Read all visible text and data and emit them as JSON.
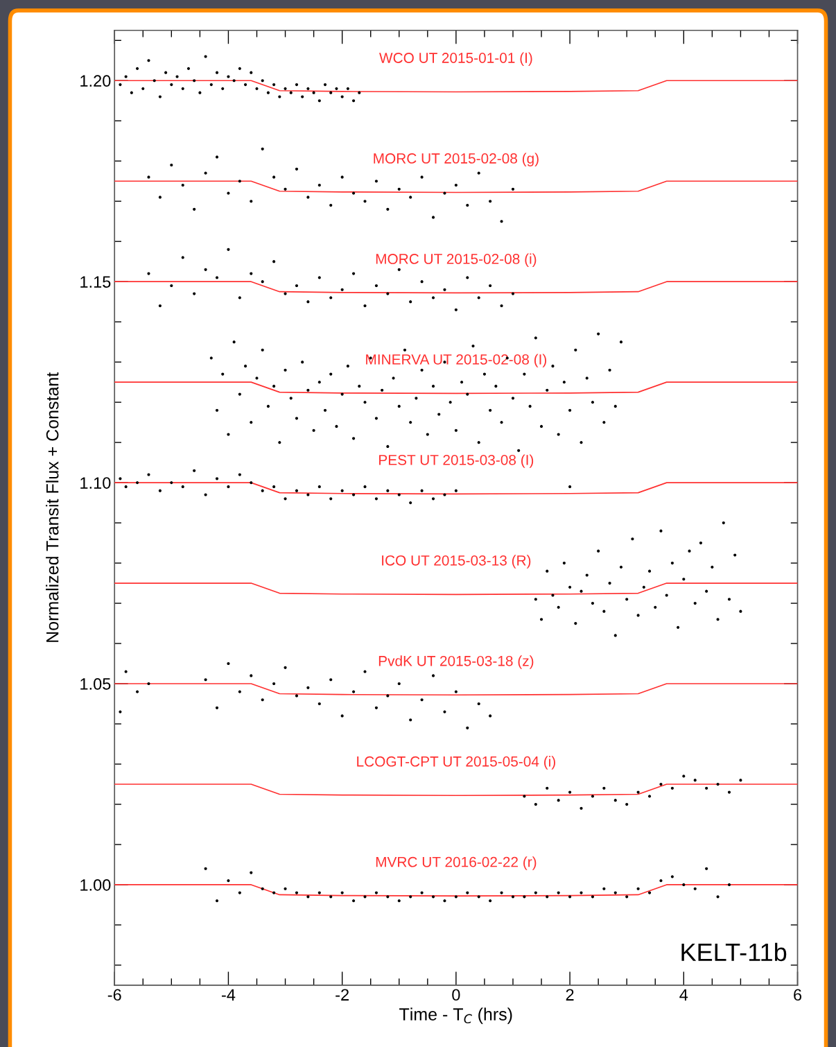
{
  "chart_data": {
    "type": "scatter",
    "xlabel": "Time - T$_{C}$ (hrs)",
    "ylabel": "Normalized Transit Flux + Constant",
    "xlim": [
      -6,
      6
    ],
    "xticks": [
      -6,
      -4,
      -2,
      0,
      2,
      4,
      6
    ],
    "ylim": [
      0.975,
      1.2125
    ],
    "yticks": [
      {
        "value": 1.0,
        "label": "1.00"
      },
      {
        "value": 1.05,
        "label": "1.05"
      },
      {
        "value": 1.1,
        "label": "1.10"
      },
      {
        "value": 1.15,
        "label": "1.15"
      },
      {
        "value": 1.2,
        "label": "1.20"
      }
    ],
    "grid": false,
    "legend": false,
    "series": [
      {
        "marker": "circle",
        "color": "#000000",
        "x": [
          -5.9,
          -5.8,
          -5.7,
          -5.6,
          -5.5,
          -5.4,
          -5.3,
          -5.2,
          -5.1,
          -5.0,
          -4.9,
          -4.8,
          -4.7,
          -4.6,
          -4.5,
          -4.4,
          -4.3,
          -4.2,
          -4.1,
          -4.0,
          -3.9,
          -3.8,
          -3.7,
          -3.6,
          -3.5,
          -3.4,
          -3.3,
          -3.2,
          -3.1,
          -3.0,
          -2.9,
          -2.8,
          -2.7,
          -2.6,
          -2.5,
          -2.4,
          -2.3,
          -2.2,
          -2.1,
          -2.0,
          -1.9,
          -1.8,
          -1.7
        ],
        "values": [
          1.199,
          1.201,
          1.197,
          1.203,
          1.198,
          1.205,
          1.2,
          1.196,
          1.202,
          1.199,
          1.201,
          1.198,
          1.203,
          1.2,
          1.197,
          1.206,
          1.199,
          1.202,
          1.198,
          1.201,
          1.2,
          1.203,
          1.199,
          1.202,
          1.198,
          1.2,
          1.197,
          1.199,
          1.196,
          1.198,
          1.197,
          1.199,
          1.196,
          1.198,
          1.197,
          1.195,
          1.199,
          1.197,
          1.198,
          1.196,
          1.198,
          1.195,
          1.197
        ]
      },
      {
        "marker": "circle",
        "color": "#000000",
        "x": [
          -5.4,
          -5.2,
          -5.0,
          -4.8,
          -4.6,
          -4.4,
          -4.2,
          -4.0,
          -3.8,
          -3.6,
          -3.4,
          -3.2,
          -3.0,
          -2.8,
          -2.6,
          -2.4,
          -2.2,
          -2.0,
          -1.8,
          -1.6,
          -1.4,
          -1.2,
          -1.0,
          -0.8,
          -0.6,
          -0.4,
          -0.2,
          0.0,
          0.2,
          0.4,
          0.6,
          0.8,
          1.0
        ],
        "values": [
          1.176,
          1.171,
          1.179,
          1.174,
          1.168,
          1.177,
          1.181,
          1.172,
          1.175,
          1.17,
          1.183,
          1.176,
          1.173,
          1.178,
          1.171,
          1.174,
          1.169,
          1.176,
          1.172,
          1.17,
          1.175,
          1.168,
          1.173,
          1.171,
          1.176,
          1.166,
          1.172,
          1.174,
          1.169,
          1.177,
          1.17,
          1.165,
          1.173
        ]
      },
      {
        "marker": "circle",
        "color": "#000000",
        "x": [
          -5.4,
          -5.2,
          -5.0,
          -4.8,
          -4.6,
          -4.4,
          -4.2,
          -4.0,
          -3.8,
          -3.6,
          -3.4,
          -3.2,
          -3.0,
          -2.8,
          -2.6,
          -2.4,
          -2.2,
          -2.0,
          -1.8,
          -1.6,
          -1.4,
          -1.2,
          -1.0,
          -0.8,
          -0.6,
          -0.4,
          -0.2,
          0.0,
          0.2,
          0.4,
          0.6,
          0.8,
          1.0
        ],
        "values": [
          1.152,
          1.144,
          1.149,
          1.156,
          1.147,
          1.153,
          1.151,
          1.158,
          1.146,
          1.152,
          1.15,
          1.155,
          1.147,
          1.149,
          1.145,
          1.151,
          1.146,
          1.148,
          1.152,
          1.144,
          1.149,
          1.147,
          1.153,
          1.145,
          1.15,
          1.146,
          1.148,
          1.143,
          1.151,
          1.146,
          1.149,
          1.144,
          1.147
        ]
      },
      {
        "marker": "circle",
        "color": "#000000",
        "x": [
          -4.3,
          -4.2,
          -4.1,
          -4.0,
          -3.9,
          -3.8,
          -3.7,
          -3.6,
          -3.5,
          -3.4,
          -3.3,
          -3.2,
          -3.1,
          -3.0,
          -2.9,
          -2.8,
          -2.7,
          -2.6,
          -2.5,
          -2.4,
          -2.3,
          -2.2,
          -2.1,
          -2.0,
          -1.9,
          -1.8,
          -1.7,
          -1.6,
          -1.5,
          -1.4,
          -1.3,
          -1.2,
          -1.1,
          -1.0,
          -0.9,
          -0.8,
          -0.7,
          -0.6,
          -0.5,
          -0.4,
          -0.3,
          -0.2,
          -0.1,
          0.0,
          0.1,
          0.2,
          0.3,
          0.4,
          0.5,
          0.6,
          0.7,
          0.8,
          0.9,
          1.0,
          1.1,
          1.2,
          1.3,
          1.4,
          1.5,
          1.6,
          1.7,
          1.8,
          1.9,
          2.0,
          2.1,
          2.2,
          2.3,
          2.4,
          2.5,
          2.6,
          2.7,
          2.8,
          2.9
        ],
        "values": [
          1.131,
          1.118,
          1.127,
          1.112,
          1.135,
          1.122,
          1.129,
          1.115,
          1.126,
          1.133,
          1.119,
          1.124,
          1.11,
          1.128,
          1.121,
          1.116,
          1.13,
          1.123,
          1.113,
          1.125,
          1.118,
          1.127,
          1.114,
          1.122,
          1.129,
          1.111,
          1.124,
          1.12,
          1.131,
          1.116,
          1.123,
          1.109,
          1.126,
          1.119,
          1.133,
          1.115,
          1.121,
          1.128,
          1.112,
          1.124,
          1.117,
          1.13,
          1.12,
          1.113,
          1.125,
          1.122,
          1.134,
          1.11,
          1.127,
          1.118,
          1.124,
          1.115,
          1.131,
          1.121,
          1.108,
          1.127,
          1.119,
          1.136,
          1.114,
          1.123,
          1.129,
          1.112,
          1.125,
          1.118,
          1.133,
          1.11,
          1.126,
          1.12,
          1.137,
          1.115,
          1.128,
          1.119,
          1.135
        ]
      },
      {
        "marker": "circle",
        "color": "#000000",
        "x": [
          -5.9,
          -5.8,
          -5.6,
          -5.4,
          -5.2,
          -5.0,
          -4.8,
          -4.6,
          -4.4,
          -4.2,
          -4.0,
          -3.8,
          -3.6,
          -3.4,
          -3.2,
          -3.0,
          -2.8,
          -2.6,
          -2.4,
          -2.2,
          -2.0,
          -1.8,
          -1.6,
          -1.4,
          -1.2,
          -1.0,
          -0.8,
          -0.6,
          -0.4,
          -0.2,
          0.0,
          2.0
        ],
        "values": [
          1.101,
          1.099,
          1.1,
          1.102,
          1.098,
          1.1,
          1.099,
          1.103,
          1.097,
          1.101,
          1.099,
          1.102,
          1.1,
          1.098,
          1.099,
          1.096,
          1.098,
          1.097,
          1.099,
          1.096,
          1.098,
          1.097,
          1.099,
          1.096,
          1.098,
          1.097,
          1.095,
          1.098,
          1.096,
          1.097,
          1.098,
          1.099
        ]
      },
      {
        "marker": "circle",
        "color": "#000000",
        "x": [
          1.4,
          1.5,
          1.6,
          1.7,
          1.8,
          1.9,
          2.0,
          2.1,
          2.2,
          2.3,
          2.4,
          2.5,
          2.6,
          2.7,
          2.8,
          2.9,
          3.0,
          3.1,
          3.2,
          3.3,
          3.4,
          3.5,
          3.6,
          3.7,
          3.8,
          3.9,
          4.0,
          4.1,
          4.2,
          4.3,
          4.4,
          4.5,
          4.6,
          4.7,
          4.8,
          4.9,
          5.0
        ],
        "values": [
          1.071,
          1.066,
          1.078,
          1.072,
          1.069,
          1.08,
          1.074,
          1.065,
          1.073,
          1.077,
          1.07,
          1.083,
          1.068,
          1.075,
          1.062,
          1.079,
          1.071,
          1.086,
          1.067,
          1.074,
          1.078,
          1.069,
          1.088,
          1.072,
          1.08,
          1.064,
          1.076,
          1.083,
          1.07,
          1.085,
          1.073,
          1.079,
          1.066,
          1.09,
          1.071,
          1.082,
          1.068
        ]
      },
      {
        "marker": "circle",
        "color": "#000000",
        "x": [
          -5.9,
          -5.8,
          -5.6,
          -5.4,
          -4.4,
          -4.2,
          -4.0,
          -3.8,
          -3.6,
          -3.4,
          -3.2,
          -3.0,
          -2.8,
          -2.6,
          -2.4,
          -2.2,
          -2.0,
          -1.8,
          -1.6,
          -1.4,
          -1.2,
          -1.0,
          -0.8,
          -0.6,
          -0.4,
          -0.2,
          0.0,
          0.2,
          0.4,
          0.6
        ],
        "values": [
          1.043,
          1.053,
          1.048,
          1.05,
          1.051,
          1.044,
          1.055,
          1.048,
          1.052,
          1.046,
          1.05,
          1.054,
          1.047,
          1.049,
          1.045,
          1.051,
          1.042,
          1.048,
          1.053,
          1.044,
          1.047,
          1.05,
          1.041,
          1.046,
          1.052,
          1.043,
          1.048,
          1.039,
          1.045,
          1.042
        ]
      },
      {
        "marker": "circle",
        "color": "#000000",
        "x": [
          1.2,
          1.4,
          1.6,
          1.8,
          2.0,
          2.2,
          2.4,
          2.6,
          2.8,
          3.0,
          3.2,
          3.4,
          3.6,
          3.8,
          4.0,
          4.2,
          4.4,
          4.6,
          4.8,
          5.0
        ],
        "values": [
          1.022,
          1.02,
          1.024,
          1.021,
          1.023,
          1.019,
          1.022,
          1.024,
          1.021,
          1.02,
          1.023,
          1.022,
          1.025,
          1.024,
          1.027,
          1.026,
          1.024,
          1.025,
          1.023,
          1.026
        ]
      },
      {
        "marker": "circle",
        "color": "#000000",
        "x": [
          -4.4,
          -4.2,
          -4.0,
          -3.8,
          -3.6,
          -3.4,
          -3.2,
          -3.0,
          -2.8,
          -2.6,
          -2.4,
          -2.2,
          -2.0,
          -1.8,
          -1.6,
          -1.4,
          -1.2,
          -1.0,
          -0.8,
          -0.6,
          -0.4,
          -0.2,
          0.0,
          0.2,
          0.4,
          0.6,
          0.8,
          1.0,
          1.2,
          1.4,
          1.6,
          1.8,
          2.0,
          2.2,
          2.4,
          2.6,
          2.8,
          3.0,
          3.2,
          3.4,
          3.6,
          3.8,
          4.0,
          4.2,
          4.4,
          4.6,
          4.8
        ],
        "values": [
          1.004,
          0.996,
          1.001,
          0.998,
          1.003,
          0.999,
          0.998,
          0.999,
          0.998,
          0.997,
          0.998,
          0.997,
          0.998,
          0.996,
          0.997,
          0.998,
          0.997,
          0.996,
          0.997,
          0.998,
          0.997,
          0.996,
          0.997,
          0.998,
          0.997,
          0.996,
          0.998,
          0.997,
          0.997,
          0.998,
          0.997,
          0.998,
          0.997,
          0.998,
          0.997,
          0.999,
          0.998,
          0.997,
          0.999,
          0.998,
          1.001,
          1.002,
          1.0,
          0.999,
          1.004,
          0.997,
          1.0
        ]
      },
      {
        "type": "line",
        "name": "WCO UT 2015-01-01 (I)",
        "color": "#ff3030",
        "x": [
          -6,
          -3.6,
          -3.1,
          -2,
          0,
          2,
          3.2,
          3.7,
          6
        ],
        "values": [
          1.2,
          1.2,
          1.1975,
          1.1973,
          1.1972,
          1.1973,
          1.1975,
          1.2,
          1.2
        ]
      },
      {
        "type": "line",
        "name": "MORC UT 2015-02-08 (g)",
        "color": "#ff3030",
        "x": [
          -6,
          -3.6,
          -3.1,
          -2,
          0,
          2,
          3.2,
          3.7,
          6
        ],
        "values": [
          1.175,
          1.175,
          1.1725,
          1.1723,
          1.1722,
          1.1723,
          1.1725,
          1.175,
          1.175
        ]
      },
      {
        "type": "line",
        "name": "MORC UT 2015-02-08 (i)",
        "color": "#ff3030",
        "x": [
          -6,
          -3.6,
          -3.1,
          -2,
          0,
          2,
          3.2,
          3.7,
          6
        ],
        "values": [
          1.15,
          1.15,
          1.1475,
          1.1473,
          1.1472,
          1.1473,
          1.1475,
          1.15,
          1.15
        ]
      },
      {
        "type": "line",
        "name": "MINERVA UT 2015-02-08 (I)",
        "color": "#ff3030",
        "x": [
          -6,
          -3.6,
          -3.1,
          -2,
          0,
          2,
          3.2,
          3.7,
          6
        ],
        "values": [
          1.125,
          1.125,
          1.1225,
          1.1223,
          1.1222,
          1.1223,
          1.1225,
          1.125,
          1.125
        ]
      },
      {
        "type": "line",
        "name": "PEST UT 2015-03-08 (I)",
        "color": "#ff3030",
        "x": [
          -6,
          -3.6,
          -3.1,
          -2,
          0,
          2,
          3.2,
          3.7,
          6
        ],
        "values": [
          1.1,
          1.1,
          1.0975,
          1.0973,
          1.0972,
          1.0973,
          1.0975,
          1.1,
          1.1
        ]
      },
      {
        "type": "line",
        "name": "ICO UT 2015-03-13 (R)",
        "color": "#ff3030",
        "x": [
          -6,
          -3.6,
          -3.1,
          -2,
          0,
          2,
          3.2,
          3.7,
          6
        ],
        "values": [
          1.075,
          1.075,
          1.0725,
          1.0723,
          1.0722,
          1.0723,
          1.0725,
          1.075,
          1.075
        ]
      },
      {
        "type": "line",
        "name": "PvdK UT 2015-03-18 (z)",
        "color": "#ff3030",
        "x": [
          -6,
          -3.6,
          -3.1,
          -2,
          0,
          2,
          3.2,
          3.7,
          6
        ],
        "values": [
          1.05,
          1.05,
          1.0475,
          1.0473,
          1.0472,
          1.0473,
          1.0475,
          1.05,
          1.05
        ]
      },
      {
        "type": "line",
        "name": "LCOGT-CPT UT 2015-05-04 (i)",
        "color": "#ff3030",
        "x": [
          -6,
          -3.6,
          -3.1,
          -2,
          0,
          2,
          3.2,
          3.7,
          6
        ],
        "values": [
          1.025,
          1.025,
          1.0225,
          1.0223,
          1.0222,
          1.0223,
          1.0225,
          1.025,
          1.025
        ]
      },
      {
        "type": "line",
        "name": "MVRC UT 2016-02-22 (r)",
        "color": "#ff3030",
        "x": [
          -6,
          -3.6,
          -3.1,
          -2,
          0,
          2,
          3.2,
          3.7,
          6
        ],
        "values": [
          1.0,
          1.0,
          0.9975,
          0.9973,
          0.9972,
          0.9973,
          0.9975,
          1.0,
          1.0
        ]
      }
    ],
    "annotations": [
      "KELT-11b"
    ]
  }
}
